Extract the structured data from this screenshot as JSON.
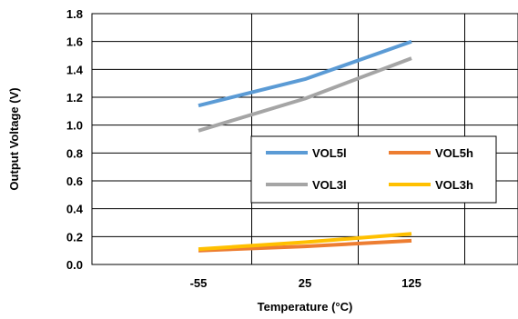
{
  "chart_data": {
    "type": "line",
    "title": "",
    "xlabel": "Temperature (°C)",
    "ylabel": "Output Voltage (V)",
    "x": [
      -55,
      25,
      125
    ],
    "x_tick_labels": [
      "-55",
      "25",
      "125"
    ],
    "y_tick_labels": [
      "0.0",
      "0.2",
      "0.4",
      "0.6",
      "0.8",
      "1.0",
      "1.2",
      "1.4",
      "1.6",
      "1.8"
    ],
    "ylim": [
      0,
      1.8
    ],
    "grid": true,
    "legend_position": "center-right",
    "series": [
      {
        "name": "VOL5l",
        "color": "#5b9bd5",
        "values": [
          1.14,
          1.33,
          1.6
        ]
      },
      {
        "name": "VOL5h",
        "color": "#ed7d31",
        "values": [
          0.1,
          0.13,
          0.17
        ]
      },
      {
        "name": "VOL3l",
        "color": "#a5a5a5",
        "values": [
          0.96,
          1.19,
          1.48
        ]
      },
      {
        "name": "VOL3h",
        "color": "#ffc000",
        "values": [
          0.11,
          0.16,
          0.22
        ]
      }
    ]
  }
}
